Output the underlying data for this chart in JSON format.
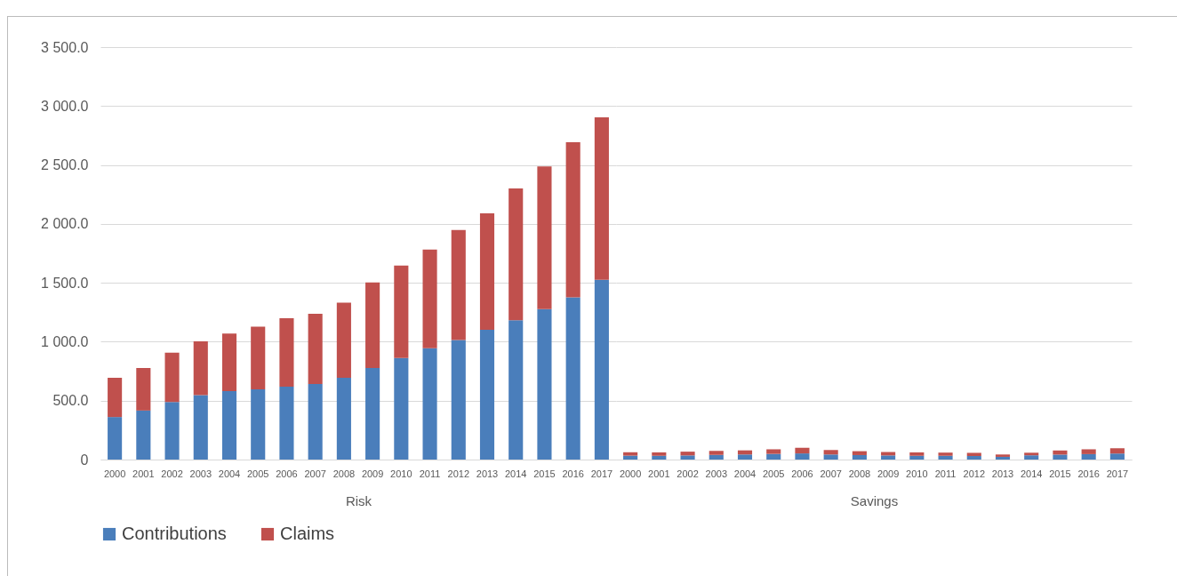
{
  "chart_data": [
    {
      "type": "bar",
      "stacked": true,
      "xlabel": "Risk",
      "categories": [
        "2000",
        "2001",
        "2002",
        "2003",
        "2004",
        "2005",
        "2006",
        "2007",
        "2008",
        "2009",
        "2010",
        "2011",
        "2012",
        "2013",
        "2014",
        "2015",
        "2016",
        "2017"
      ],
      "series": [
        {
          "name": "Contributions",
          "color": "#4a7ebb",
          "values": [
            361,
            416,
            488,
            546,
            581,
            595,
            618,
            642,
            694,
            777,
            861,
            945,
            1014,
            1101,
            1182,
            1277,
            1376,
            1526
          ]
        },
        {
          "name": "Claims",
          "color": "#c0504d",
          "values": [
            333,
            361,
            419,
            457,
            488,
            532,
            581,
            595,
            638,
            726,
            786,
            838,
            934,
            988,
            1118,
            1211,
            1317,
            1379
          ]
        }
      ],
      "ylim": [
        0,
        3500
      ],
      "yticks": [
        0,
        {
          "value": 500,
          "label": "500.0"
        },
        {
          "value": 1000,
          "label": "1 000.0"
        },
        {
          "value": 1500,
          "label": "1 500.0"
        },
        {
          "value": 2000,
          "label": "2 000.0"
        },
        {
          "value": 2500,
          "label": "2 500.0"
        },
        {
          "value": 3000,
          "label": "3 000.0"
        },
        {
          "value": 3500,
          "label": "3 500.0"
        }
      ],
      "grid": "y",
      "legend": "bottom"
    },
    {
      "type": "bar",
      "stacked": true,
      "xlabel": "Savings",
      "categories": [
        "2000",
        "2001",
        "2002",
        "2003",
        "2004",
        "2005",
        "2006",
        "2007",
        "2008",
        "2009",
        "2010",
        "2011",
        "2012",
        "2013",
        "2014",
        "2015",
        "2016",
        "2017"
      ],
      "series": [
        {
          "name": "Contributions",
          "color": "#4a7ebb",
          "values": [
            33,
            32,
            35,
            39,
            43,
            48,
            52,
            43,
            38,
            35,
            32,
            32,
            30,
            23,
            36,
            42,
            46,
            51
          ]
        },
        {
          "name": "Claims",
          "color": "#c0504d",
          "values": [
            29,
            29,
            32,
            35,
            35,
            39,
            48,
            38,
            33,
            29,
            29,
            27,
            27,
            20,
            22,
            35,
            41,
            45
          ]
        }
      ],
      "ylim": [
        0,
        3500
      ],
      "yticks": [
        0,
        {
          "value": 500,
          "label": "500.0"
        },
        {
          "value": 1000,
          "label": "1 000.0"
        },
        {
          "value": 1500,
          "label": "1 500.0"
        },
        {
          "value": 2000,
          "label": "2 000.0"
        },
        {
          "value": 2500,
          "label": "2 500.0"
        },
        {
          "value": 3000,
          "label": "3 000.0"
        },
        {
          "value": 3500,
          "label": "3 500.0"
        }
      ],
      "grid": "y",
      "tick_labels": "x"
    }
  ]
}
